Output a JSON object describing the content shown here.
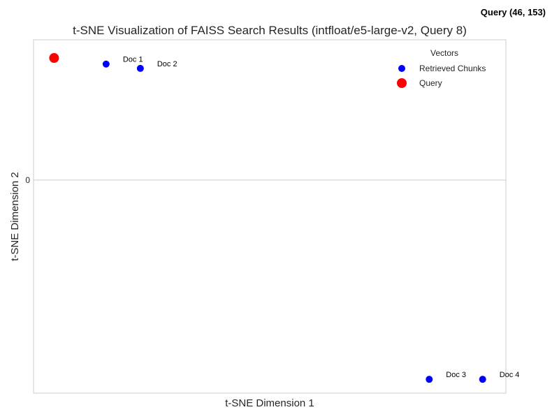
{
  "corner_annotation": "Query (46, 153)",
  "chart_data": {
    "type": "scatter",
    "title": "t-SNE Visualization of FAISS Search Results (intfloat/e5-large-v2, Query 8)",
    "xlabel": "t-SNE Dimension 1",
    "ylabel": "t-SNE Dimension 2",
    "xlim": [
      -175,
      170
    ],
    "ylim": [
      -123,
      81
    ],
    "yticks": [
      0
    ],
    "yticklabels": [
      "0"
    ],
    "grid": true,
    "legend": {
      "title": "Vectors",
      "placement": "top-right",
      "entries": [
        "Retrieved Chunks",
        "Query"
      ]
    },
    "series": [
      {
        "name": "Retrieved Chunks",
        "color": "#0000ff",
        "points": [
          {
            "x": -122,
            "y": 67,
            "label": "Doc 1"
          },
          {
            "x": -97,
            "y": 64.5,
            "label": "Doc 2"
          },
          {
            "x": 114,
            "y": -115,
            "label": "Doc 3"
          },
          {
            "x": 153,
            "y": -115,
            "label": "Doc 4"
          }
        ]
      },
      {
        "name": "Query",
        "color": "#ff0000",
        "points": [
          {
            "x": -160,
            "y": 70.5
          }
        ]
      }
    ]
  }
}
